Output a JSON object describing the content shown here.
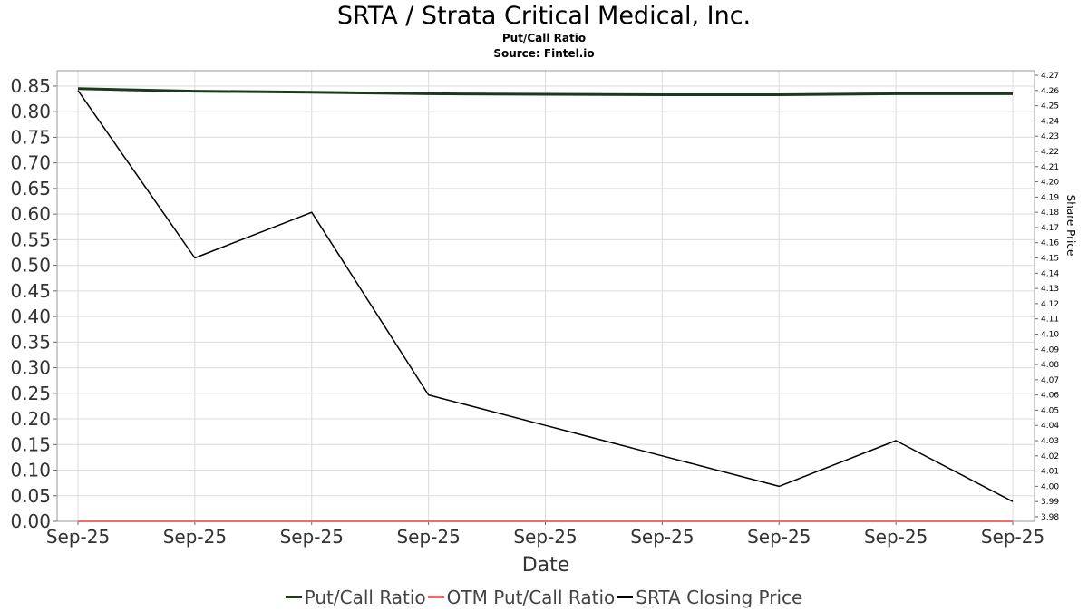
{
  "title": "SRTA / Strata Critical Medical, Inc.",
  "subtitle": "Put/Call Ratio",
  "source": "Source: Fintel.io",
  "chart_data": {
    "type": "line",
    "xlabel": "Date",
    "ylabel": "",
    "y2label": "Share Price",
    "categories": [
      "Sep-25",
      "Sep-25",
      "Sep-25",
      "Sep-25",
      "Sep-25",
      "Sep-25",
      "Sep-25",
      "Sep-25",
      "Sep-25"
    ],
    "ylim": [
      0,
      0.88
    ],
    "yticks": [
      "0.00",
      "0.05",
      "0.10",
      "0.15",
      "0.20",
      "0.25",
      "0.30",
      "0.35",
      "0.40",
      "0.45",
      "0.50",
      "0.55",
      "0.60",
      "0.65",
      "0.70",
      "0.75",
      "0.80",
      "0.85"
    ],
    "y2lim": [
      3.977,
      4.273
    ],
    "y2ticks": [
      "3.98",
      "3.99",
      "4.00",
      "4.01",
      "4.02",
      "4.03",
      "4.04",
      "4.05",
      "4.06",
      "4.07",
      "4.08",
      "4.09",
      "4.10",
      "4.11",
      "4.12",
      "4.13",
      "4.14",
      "4.15",
      "4.16",
      "4.17",
      "4.18",
      "4.19",
      "4.20",
      "4.21",
      "4.22",
      "4.23",
      "4.24",
      "4.25",
      "4.26",
      "4.27"
    ],
    "grid": true,
    "legend_position": "bottom",
    "series": [
      {
        "name": "Put/Call Ratio",
        "axis": "left",
        "color": "#1a3a1a",
        "width": 3,
        "values": [
          0.845,
          0.84,
          0.838,
          0.835,
          0.834,
          0.833,
          0.833,
          0.835,
          0.835
        ]
      },
      {
        "name": "OTM Put/Call Ratio",
        "axis": "left",
        "color": "#ff6666",
        "width": 2,
        "values": [
          0,
          0,
          0,
          0,
          0,
          0,
          0,
          0,
          0
        ]
      },
      {
        "name": "SRTA Closing Price",
        "axis": "right",
        "color": "#000000",
        "width": 1.5,
        "values": [
          4.26,
          4.15,
          4.18,
          4.06,
          4.04,
          4.02,
          4.0,
          4.03,
          3.99
        ]
      }
    ]
  }
}
